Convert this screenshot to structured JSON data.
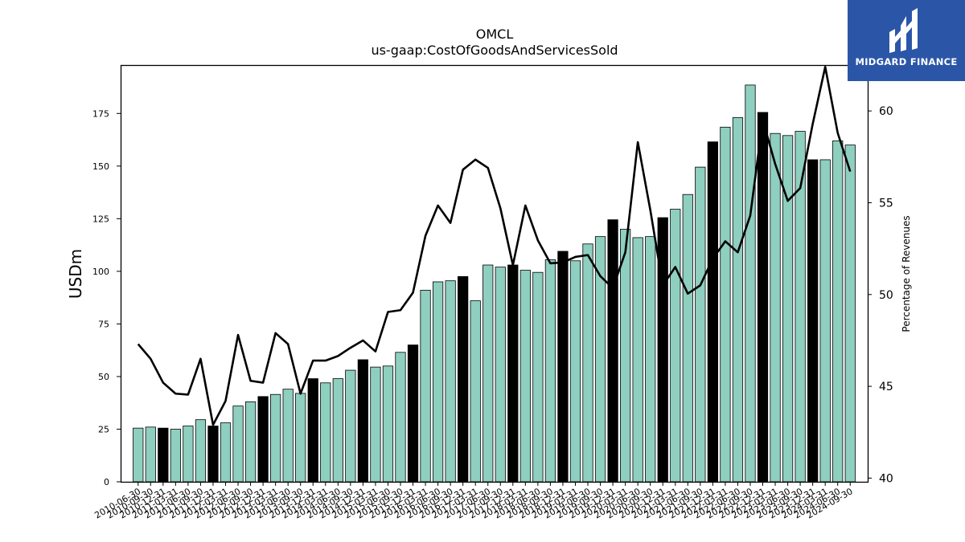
{
  "chart_data": {
    "type": "bar",
    "title": "OMCL",
    "subtitle": "us-gaap:CostOfGoodsAndServicesSold",
    "ylabel": "USDm",
    "ylabel_right": "Percentage of Revenues",
    "ylim": [
      0,
      198
    ],
    "ylim_right": [
      39.8,
      62.5
    ],
    "yticks": [
      0,
      25,
      50,
      75,
      100,
      125,
      150,
      175
    ],
    "yticks_right": [
      40,
      45,
      50,
      55,
      60
    ],
    "grid": false,
    "legend": "none",
    "categories": [
      "2010-06-30",
      "2010-09-30",
      "2010-12-31",
      "2011-03-31",
      "2011-06-30",
      "2011-09-30",
      "2011-12-31",
      "2012-03-31",
      "2012-06-30",
      "2012-09-30",
      "2012-12-31",
      "2013-03-31",
      "2013-06-30",
      "2013-09-30",
      "2013-12-31",
      "2014-03-31",
      "2014-06-30",
      "2014-09-30",
      "2014-12-31",
      "2015-03-31",
      "2015-06-30",
      "2015-09-30",
      "2015-12-31",
      "2016-03-31",
      "2016-06-30",
      "2016-09-30",
      "2016-12-31",
      "2017-03-31",
      "2017-06-30",
      "2017-09-30",
      "2017-12-31",
      "2018-03-31",
      "2018-06-30",
      "2018-09-30",
      "2018-12-31",
      "2019-03-31",
      "2019-06-30",
      "2019-09-30",
      "2019-12-31",
      "2020-03-31",
      "2020-06-30",
      "2020-09-30",
      "2020-12-31",
      "2021-03-31",
      "2021-06-30",
      "2021-09-30",
      "2021-12-31",
      "2022-03-31",
      "2022-06-30",
      "2022-09-30",
      "2022-12-31",
      "2023-03-31",
      "2023-06-30",
      "2023-09-30",
      "2023-12-31",
      "2024-03-31",
      "2024-06-30",
      "2024-09-30"
    ],
    "highlight": [
      false,
      false,
      true,
      false,
      false,
      false,
      true,
      false,
      false,
      false,
      true,
      false,
      false,
      false,
      true,
      false,
      false,
      false,
      true,
      false,
      false,
      false,
      true,
      false,
      false,
      false,
      true,
      false,
      false,
      false,
      true,
      false,
      false,
      false,
      true,
      false,
      false,
      false,
      true,
      false,
      false,
      false,
      true,
      false,
      false,
      false,
      true,
      false,
      false,
      false,
      true,
      false,
      false,
      false,
      true,
      false,
      false,
      false
    ],
    "series": [
      {
        "type": "bar",
        "axis": "left",
        "values": [
          25.5,
          26,
          25.5,
          25,
          26.5,
          29.5,
          26.5,
          28,
          36,
          38,
          40.5,
          41.5,
          44,
          42,
          49,
          47,
          49,
          53,
          58,
          54.5,
          55,
          61.5,
          65,
          91,
          95,
          95.5,
          97.5,
          86,
          103,
          102,
          103,
          100.5,
          99.5,
          105.5,
          109.5,
          105,
          113,
          116.5,
          124.5,
          120,
          116,
          116.5,
          125.5,
          129.5,
          136.5,
          149.5,
          161.5,
          168.5,
          173,
          188.5,
          175.5,
          165.5,
          164.5,
          166.5,
          153,
          153,
          162,
          160
        ]
      },
      {
        "type": "line",
        "axis": "right",
        "values": [
          47.3,
          46.5,
          45.2,
          44.6,
          44.55,
          46.5,
          42.9,
          44.2,
          47.8,
          45.3,
          45.2,
          47.9,
          47.3,
          44.6,
          46.4,
          46.4,
          46.65,
          47.1,
          47.5,
          46.9,
          49.05,
          49.15,
          50.1,
          53.2,
          54.85,
          53.9,
          56.8,
          57.35,
          56.9,
          54.7,
          51.6,
          54.85,
          52.95,
          51.7,
          51.75,
          52.05,
          52.15,
          51.0,
          50.35,
          52.3,
          58.3,
          54.6,
          50.5,
          51.5,
          50.05,
          50.5,
          51.95,
          52.9,
          52.3,
          54.3,
          59.5,
          57.1,
          55.1,
          55.8,
          59.3,
          62.4,
          58.8,
          56.7
        ]
      }
    ]
  },
  "logo": {
    "text": "MIDGARD FINANCE"
  }
}
